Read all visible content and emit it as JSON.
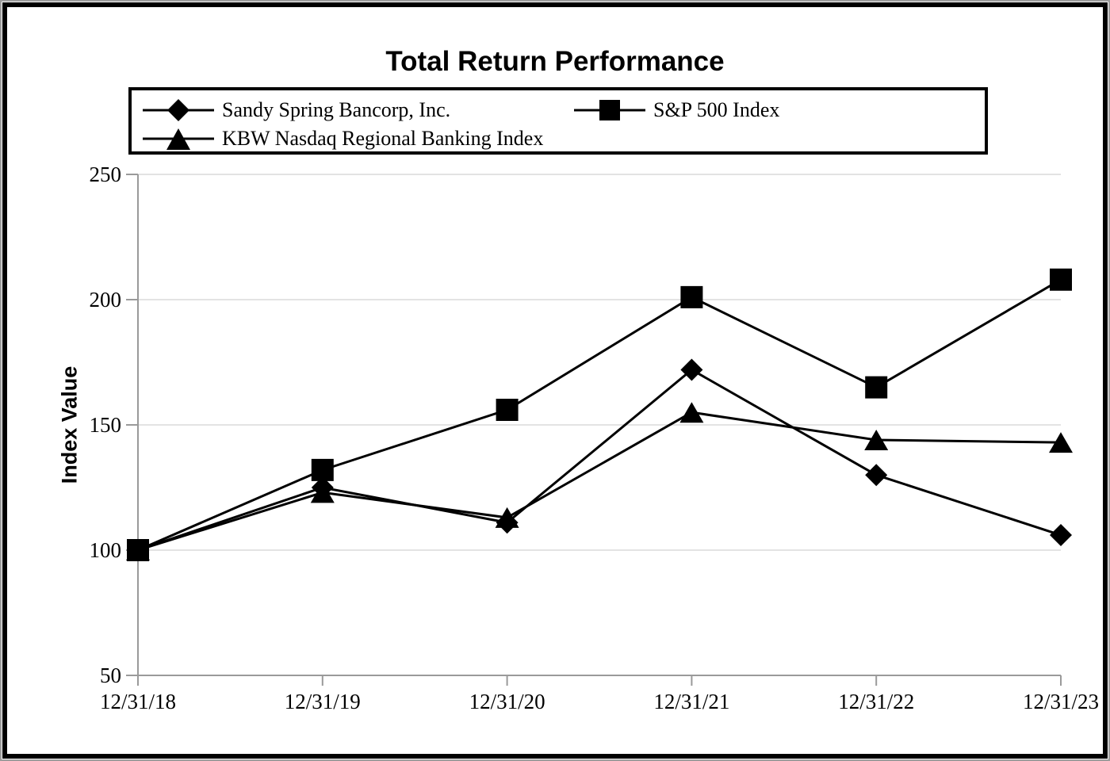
{
  "chart_data": {
    "type": "line",
    "title": "Total Return Performance",
    "ylabel": "Index Value",
    "xlabel": "",
    "categories": [
      "12/31/18",
      "12/31/19",
      "12/31/20",
      "12/31/21",
      "12/31/22",
      "12/31/23"
    ],
    "series": [
      {
        "name": "Sandy Spring Bancorp, Inc.",
        "marker": "diamond",
        "values": [
          100,
          125,
          111,
          172,
          130,
          106
        ]
      },
      {
        "name": "S&P 500 Index",
        "marker": "square",
        "values": [
          100,
          132,
          156,
          201,
          165,
          208
        ]
      },
      {
        "name": "KBW Nasdaq Regional Banking Index",
        "marker": "triangle",
        "values": [
          100,
          123,
          113,
          155,
          144,
          143
        ]
      }
    ],
    "ylim": [
      50,
      250
    ],
    "y_ticks": [
      50,
      100,
      150,
      200,
      250
    ],
    "grid": "horizontal",
    "legend_position": "top",
    "colors": {
      "series": "#000000",
      "gridline": "#e3e3e3",
      "axis": "#9a9a9a"
    }
  }
}
